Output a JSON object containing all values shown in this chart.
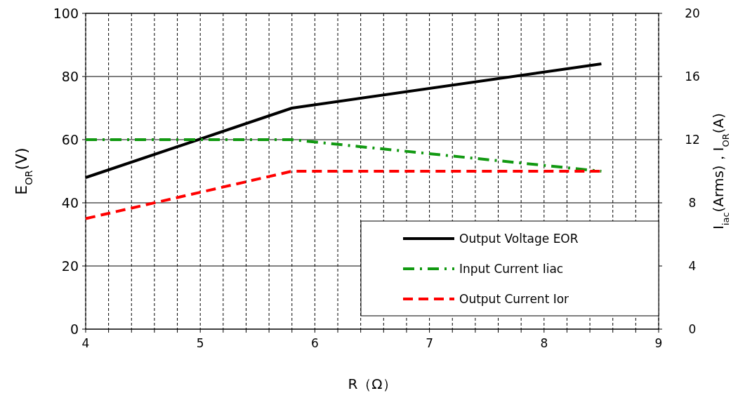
{
  "chart_data": {
    "type": "line",
    "xlabel": "R（Ω）",
    "ylabel": "E$_{OR}$(V)",
    "y2label": "I$_{iac}$(Arms)，I$_{OR}$(A)",
    "xlim": [
      4,
      9
    ],
    "xticks": [
      4,
      {
        "value": 4.2,
        "label": null
      },
      {
        "value": 4.4,
        "label": null
      },
      {
        "value": 4.6,
        "label": null
      },
      {
        "value": 4.8,
        "label": null
      },
      5,
      {
        "value": 5.2,
        "label": null
      },
      {
        "value": 5.4,
        "label": null
      },
      {
        "value": 5.6,
        "label": null
      },
      {
        "value": 5.8,
        "label": null
      },
      6,
      {
        "value": 6.2,
        "label": null
      },
      {
        "value": 6.4,
        "label": null
      },
      {
        "value": 6.6,
        "label": null
      },
      {
        "value": 6.8,
        "label": null
      },
      7,
      {
        "value": 7.2,
        "label": null
      },
      {
        "value": 7.4,
        "label": null
      },
      {
        "value": 7.6,
        "label": null
      },
      {
        "value": 7.8,
        "label": null
      },
      8,
      {
        "value": 8.2,
        "label": null
      },
      {
        "value": 8.4,
        "label": null
      },
      {
        "value": 8.6,
        "label": null
      },
      {
        "value": 8.8,
        "label": null
      },
      9
    ],
    "ylim": [
      0,
      100
    ],
    "yticks": [
      0,
      20,
      40,
      60,
      80,
      100
    ],
    "y2lim": [
      0,
      20
    ],
    "y2ticks": [
      0,
      4,
      8,
      12,
      16,
      20
    ],
    "grid": true,
    "legend": "bottom right",
    "marker": "none",
    "series": [
      {
        "name": "Output Voltage EOR",
        "color": "#000000",
        "x": [
          4,
          5.8,
          8.5
        ],
        "values": [
          48,
          70,
          84
        ],
        "line_style": "solid"
      },
      {
        "name": "Input Current Iiac",
        "color": "#119911",
        "x": [
          4,
          5.8,
          8.5
        ],
        "values": [
          12,
          12,
          10
        ],
        "axis": "y2",
        "line_style": "dashdot"
      },
      {
        "name": "Output Current Ior",
        "color": "#ff0000",
        "x": [
          4,
          5.8,
          8.5
        ],
        "values": [
          7,
          10,
          10
        ],
        "axis": "y2",
        "line_style": "dashed"
      }
    ]
  }
}
